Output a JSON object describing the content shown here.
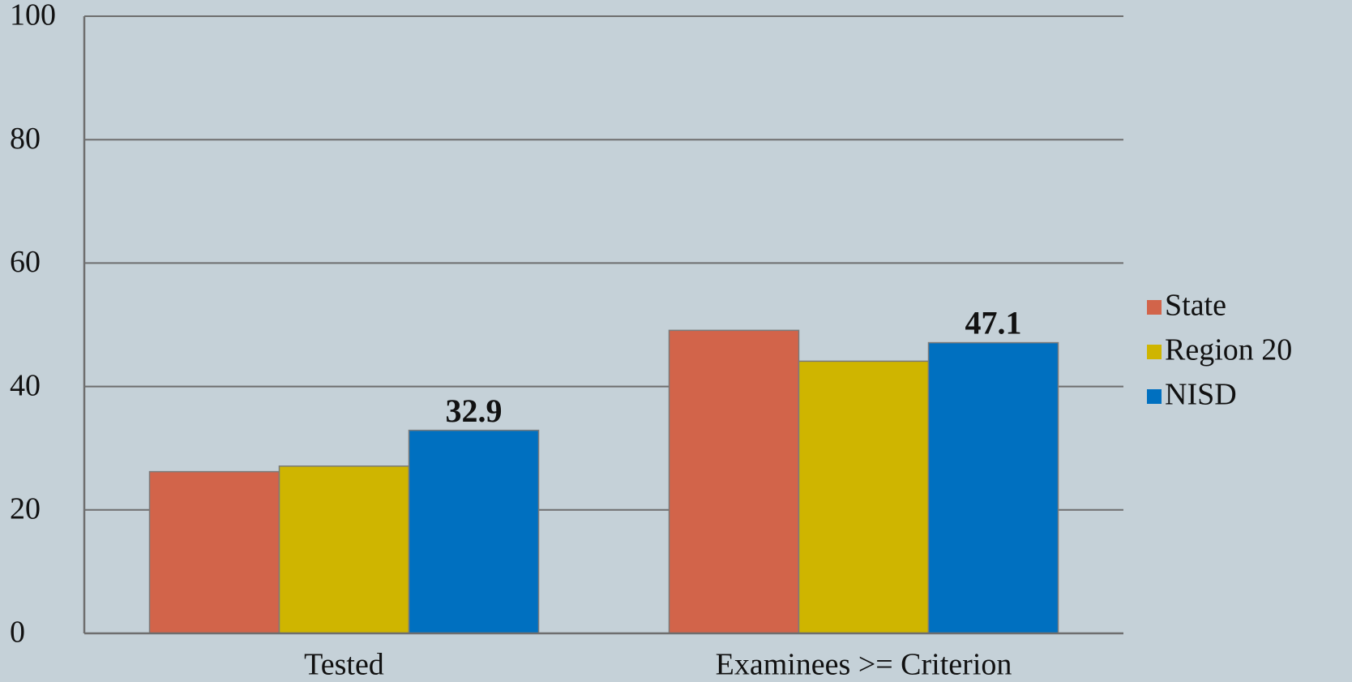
{
  "chart_data": {
    "type": "bar",
    "categories": [
      "Tested",
      "Examinees >= Criterion"
    ],
    "series": [
      {
        "name": "State",
        "color": "#d2644a",
        "values": [
          26.2,
          49.1
        ]
      },
      {
        "name": "Region 20",
        "color": "#cfb500",
        "values": [
          27.1,
          44.1
        ]
      },
      {
        "name": "NISD",
        "color": "#0070c0",
        "values": [
          32.9,
          47.1
        ],
        "show_labels": true
      }
    ],
    "ylim": [
      0,
      100
    ],
    "yticks": [
      0,
      20,
      40,
      60,
      80,
      100
    ],
    "grid": true,
    "legend": "right"
  }
}
